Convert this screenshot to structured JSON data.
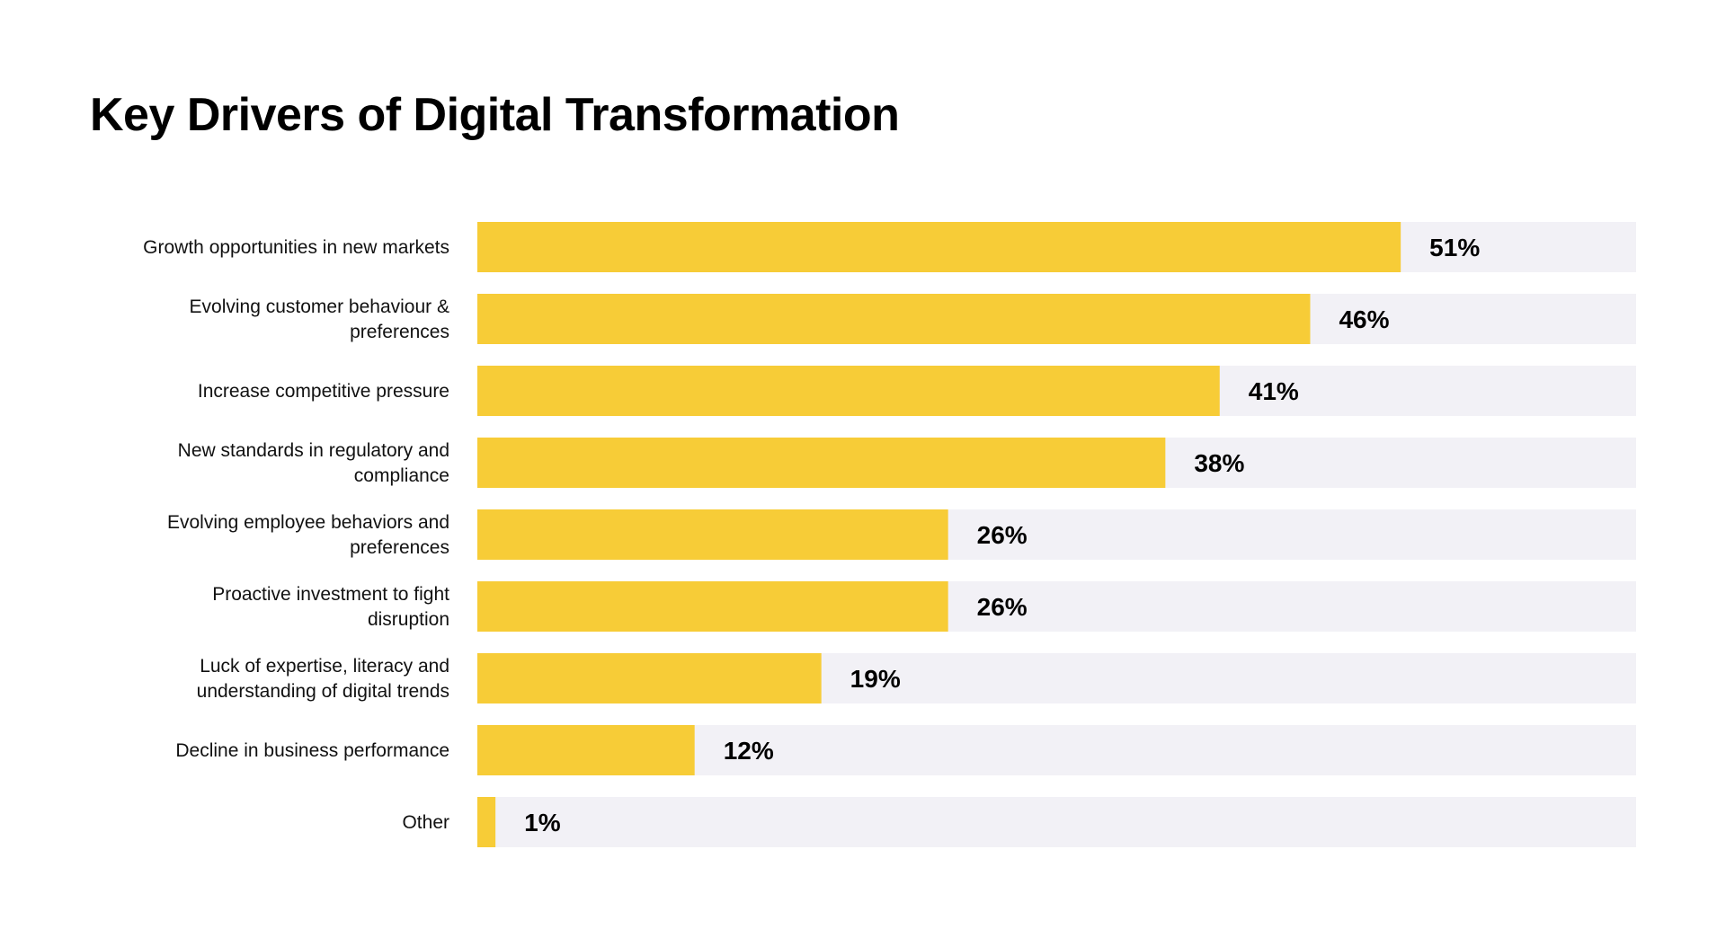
{
  "chart_data": {
    "type": "bar",
    "orientation": "horizontal",
    "title": "Key Drivers of Digital Transformation",
    "categories": [
      [
        "Growth opportunities in new markets"
      ],
      [
        "Evolving customer behaviour &",
        "preferences"
      ],
      [
        "Increase competitive pressure"
      ],
      [
        "New standards in regulatory and",
        "compliance"
      ],
      [
        "Evolving employee behaviors and",
        "preferences"
      ],
      [
        "Proactive investment to fight",
        "disruption"
      ],
      [
        "Luck of expertise, literacy and",
        "understanding of digital trends"
      ],
      [
        "Decline in business performance"
      ],
      [
        "Other"
      ]
    ],
    "values": [
      51,
      46,
      41,
      38,
      26,
      26,
      19,
      12,
      1
    ],
    "value_labels": [
      "51%",
      "46%",
      "41%",
      "38%",
      "26%",
      "26%",
      "19%",
      "12%",
      "1%"
    ],
    "xlim": [
      0,
      64
    ],
    "grid": false,
    "colors": {
      "bar": "#F7CC37",
      "track": "#F2F1F6"
    }
  }
}
